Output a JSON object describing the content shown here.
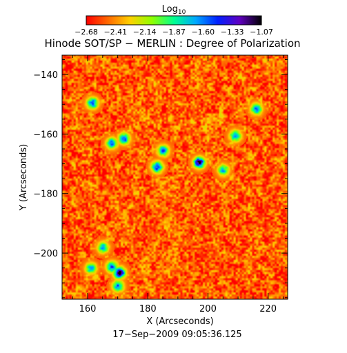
{
  "chart_data": {
    "type": "heatmap",
    "title": "Hinode SOT/SP − MERLIN : Degree of Polarization",
    "subtitle": "17−Sep−2009 09:05:36.125",
    "xlabel": "X (Arcseconds)",
    "ylabel": "Y (Arcseconds)",
    "xlim": [
      151.5,
      226.5
    ],
    "ylim": [
      -215.5,
      -133.5
    ],
    "x_ticks": [
      160,
      180,
      200,
      220
    ],
    "x_tick_labels": [
      "160",
      "180",
      "200",
      "220"
    ],
    "y_ticks": [
      -140,
      -160,
      -180,
      -200
    ],
    "y_tick_labels": [
      "−140",
      "−160",
      "−180",
      "−200"
    ],
    "colorbar": {
      "label_base": "Log",
      "label_sub": "10",
      "range": [
        -2.68,
        -1.07
      ],
      "tick_labels": [
        "−2.68",
        "−2.41",
        "−2.14",
        "−1.87",
        "−1.60",
        "−1.33",
        "−1.07"
      ],
      "colors": [
        "#ff0000",
        "#ff6a00",
        "#ffd000",
        "#8fff00",
        "#00ff90",
        "#00a8ff",
        "#0020ff",
        "#6000c0",
        "#000000"
      ]
    },
    "background_value": -2.5,
    "enhanced_regions": [
      {
        "x": 170.5,
        "y": -206.5,
        "peak": -1.07
      },
      {
        "x": 168,
        "y": -204.5,
        "peak": -1.5
      },
      {
        "x": 197,
        "y": -169.5,
        "peak": -1.2
      },
      {
        "x": 183,
        "y": -171,
        "peak": -1.4
      },
      {
        "x": 185,
        "y": -165.5,
        "peak": -1.6
      },
      {
        "x": 168,
        "y": -163,
        "peak": -1.6
      },
      {
        "x": 172,
        "y": -161.5,
        "peak": -1.5
      },
      {
        "x": 161.5,
        "y": -149.5,
        "peak": -1.5
      },
      {
        "x": 216,
        "y": -151.5,
        "peak": -1.6
      },
      {
        "x": 209,
        "y": -160.5,
        "peak": -1.6
      },
      {
        "x": 161,
        "y": -205,
        "peak": -1.7
      },
      {
        "x": 170,
        "y": -211,
        "peak": -1.6
      },
      {
        "x": 165,
        "y": -198,
        "peak": -1.7
      },
      {
        "x": 205,
        "y": -172,
        "peak": -1.7
      }
    ]
  }
}
